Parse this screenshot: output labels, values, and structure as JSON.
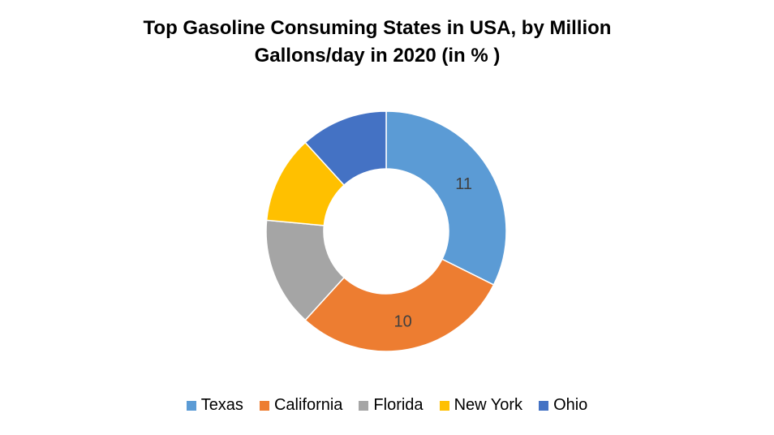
{
  "chart_data": {
    "type": "pie",
    "donut": true,
    "title_lines": [
      "Top Gasoline Consuming States in USA, by Million",
      "Gallons/day in 2020  (in % )"
    ],
    "categories": [
      "Texas",
      "California",
      "Florida",
      "New York",
      "Ohio"
    ],
    "values": [
      11,
      10,
      5,
      4,
      4
    ],
    "data_labels": [
      "11",
      "10",
      "",
      "",
      ""
    ],
    "colors": [
      "#5B9BD5",
      "#ED7D31",
      "#A5A5A5",
      "#FFC000",
      "#4472C4"
    ],
    "legend_position": "bottom"
  }
}
